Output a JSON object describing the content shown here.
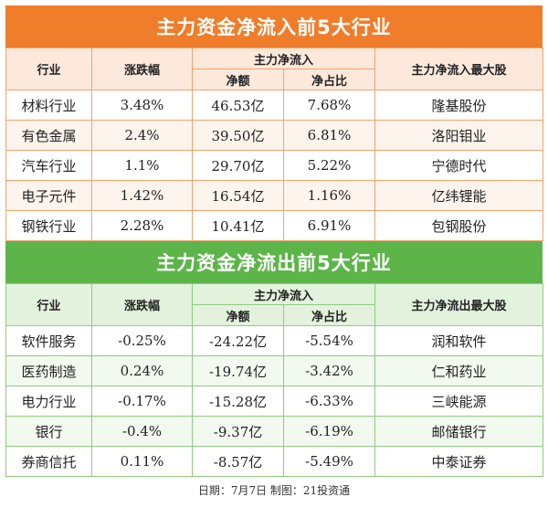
{
  "inflow": {
    "title": "主力资金净流入前5大行业",
    "headers": {
      "industry": "行业",
      "change": "涨跌幅",
      "main_flow": "主力净流入",
      "net_amount": "净额",
      "net_ratio": "净占比",
      "top_stock": "主力净流入最大股"
    },
    "rows": [
      {
        "industry": "材料行业",
        "change": "3.48%",
        "amount": "46.53亿",
        "ratio": "7.68%",
        "stock": "隆基股份"
      },
      {
        "industry": "有色金属",
        "change": "2.4%",
        "amount": "39.50亿",
        "ratio": "6.81%",
        "stock": "洛阳钼业"
      },
      {
        "industry": "汽车行业",
        "change": "1.1%",
        "amount": "29.70亿",
        "ratio": "5.22%",
        "stock": "宁德时代"
      },
      {
        "industry": "电子元件",
        "change": "1.42%",
        "amount": "16.54亿",
        "ratio": "1.16%",
        "stock": "亿纬锂能"
      },
      {
        "industry": "钢铁行业",
        "change": "2.28%",
        "amount": "10.41亿",
        "ratio": "6.91%",
        "stock": "包钢股份"
      }
    ]
  },
  "outflow": {
    "title": "主力资金净流出前5大行业",
    "headers": {
      "industry": "行业",
      "change": "涨跌幅",
      "main_flow": "主力净流入",
      "net_amount": "净额",
      "net_ratio": "净占比",
      "top_stock": "主力净流出最大股"
    },
    "rows": [
      {
        "industry": "软件服务",
        "change": "-0.25%",
        "amount": "-24.22亿",
        "ratio": "-5.54%",
        "stock": "润和软件"
      },
      {
        "industry": "医药制造",
        "change": "0.24%",
        "amount": "-19.74亿",
        "ratio": "-3.42%",
        "stock": "仁和药业"
      },
      {
        "industry": "电力行业",
        "change": "-0.17%",
        "amount": "-15.28亿",
        "ratio": "-6.33%",
        "stock": "三峡能源"
      },
      {
        "industry": "银行",
        "change": "-0.4%",
        "amount": "-9.37亿",
        "ratio": "-6.19%",
        "stock": "邮储银行"
      },
      {
        "industry": "券商信托",
        "change": "0.11%",
        "amount": "-8.57亿",
        "ratio": "-5.49%",
        "stock": "中泰证券"
      }
    ]
  },
  "footer": "日期：7月7日  制图：21投资通",
  "colors": {
    "inflow_banner": "#f07d2a",
    "outflow_banner": "#5db54a"
  }
}
